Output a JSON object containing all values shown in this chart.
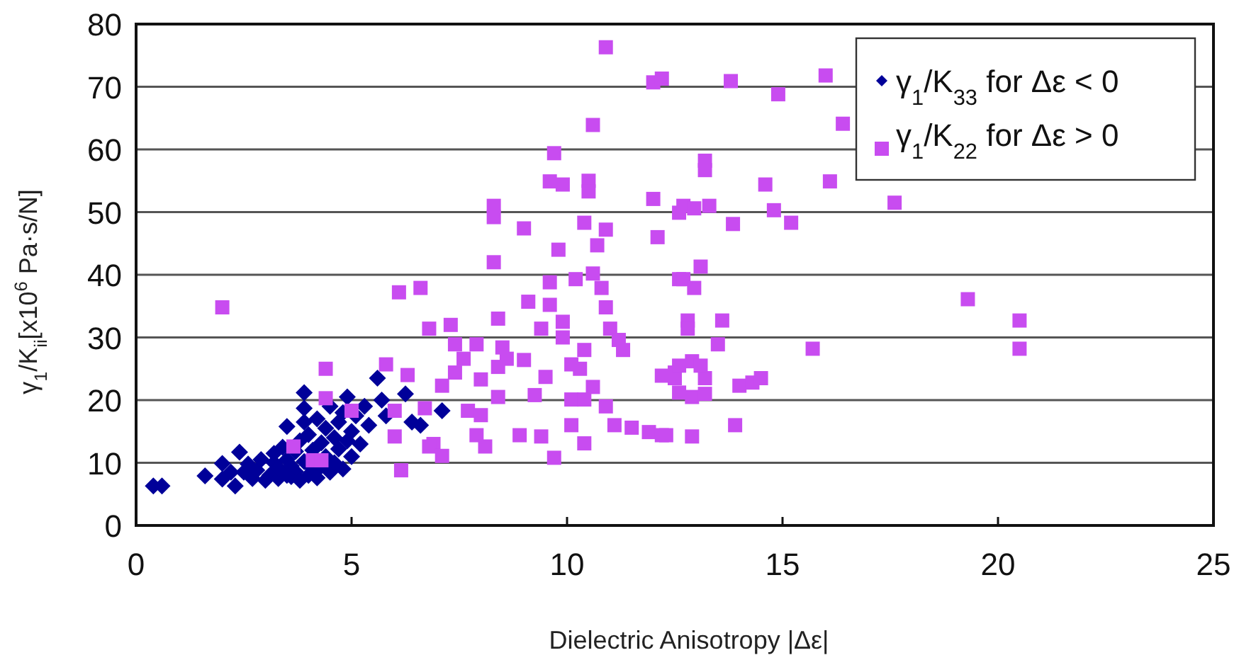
{
  "chart_data": {
    "type": "scatter",
    "xlabel": "Dielectric Anisotropy  |Δε|",
    "ylabel": "γ$_{1}$/K$_{ii}$[x10$^{6}$ Pa·s/N]",
    "xlim": [
      0,
      25
    ],
    "xticks": [
      0,
      5,
      10,
      15,
      20,
      25
    ],
    "ylim": [
      0,
      80
    ],
    "yticks": [
      0,
      10,
      20,
      30,
      40,
      50,
      60,
      70,
      80
    ],
    "grid": "y",
    "legend": "top right",
    "series": [
      {
        "name": "γ$_{1}$/K$_{33}$ for Δε < 0",
        "color": "#000099",
        "marker": "diamond",
        "x": [
          0.4,
          0.6,
          1.6,
          2.0,
          2.0,
          2.3,
          2.4,
          2.5,
          2.6,
          2.7,
          2.8,
          2.9,
          3.0,
          3.1,
          3.2,
          3.2,
          3.3,
          3.3,
          3.4,
          3.5,
          3.5,
          3.6,
          3.6,
          3.7,
          3.7,
          3.8,
          3.8,
          3.9,
          3.9,
          3.9,
          3.9,
          4.0,
          4.0,
          4.1,
          4.1,
          4.2,
          4.2,
          4.3,
          4.4,
          4.4,
          4.5,
          4.5,
          4.6,
          4.6,
          4.7,
          4.7,
          4.8,
          4.8,
          4.9,
          4.9,
          5.0,
          5.0,
          5.1,
          5.2,
          5.3,
          5.4,
          5.6,
          5.7,
          5.8,
          6.25,
          6.4,
          6.6,
          7.1,
          3.5,
          4.3,
          2.2
        ],
        "values": [
          6.3,
          6.3,
          7.9,
          9.9,
          7.4,
          6.3,
          11.7,
          8.5,
          9.8,
          7.5,
          8.8,
          10.5,
          7.2,
          8.0,
          10.0,
          11.5,
          7.5,
          9.2,
          12.5,
          15.8,
          10.5,
          7.8,
          9.5,
          8.6,
          11.8,
          13.5,
          7.2,
          21.2,
          18.7,
          16.5,
          10.2,
          8.0,
          14.5,
          12.0,
          9.0,
          17.0,
          7.6,
          13.2,
          15.5,
          11.0,
          8.5,
          19.0,
          14.0,
          10.0,
          16.5,
          12.2,
          18.0,
          9.0,
          13.5,
          20.5,
          15.0,
          11.0,
          17.5,
          13.0,
          19.0,
          16.0,
          23.5,
          20.0,
          17.5,
          21,
          16.5,
          16,
          18.3,
          8.0,
          9.5,
          8.5
        ]
      },
      {
        "name": "γ$_{1}$/K$_{22}$ for Δε > 0",
        "color": "#c84cf0",
        "marker": "square",
        "x": [
          2.0,
          4.4,
          4.4,
          3.65,
          4.1,
          4.3,
          6.15,
          5.8,
          6.3,
          6.0,
          6.8,
          7.3,
          7.4,
          7.4,
          7.1,
          6.9,
          5.0,
          10.6,
          9.7,
          9.6,
          9.9,
          10.5,
          10.5,
          8.3,
          8.3,
          9.0,
          10.4,
          10.9,
          10.7,
          9.8,
          12.0,
          12.1,
          8.3,
          9.6,
          10.2,
          10.6,
          10.8,
          10.9,
          9.1,
          9.6,
          6.1,
          6.6,
          8.4,
          9.4,
          9.9,
          9.9,
          11.0,
          11.2,
          11.3,
          7.9,
          7.6,
          8.5,
          8.6,
          9.0,
          10.1,
          10.4,
          8.0,
          8.4,
          9.5,
          10.6,
          10.3,
          9.25,
          8.4,
          7.7,
          8.0,
          7.9,
          8.1,
          6.7,
          6.0,
          6.8,
          7.1,
          10.1,
          10.4,
          10.1,
          10.4,
          10.9,
          11.1,
          11.5,
          11.9,
          12.2,
          12.2,
          12.5,
          12.6,
          12.6,
          13.8,
          14.9,
          16.0,
          16.4,
          13.2,
          13.2,
          14.6,
          16.1,
          12.7,
          12.95,
          13.3,
          13.85,
          14.8,
          15.2,
          17.6,
          12.7,
          13.1,
          12.95,
          12.8,
          12.8,
          13.6,
          13.5,
          15.7,
          19.3,
          20.5,
          20.5,
          12.5,
          13.2,
          12.9,
          12.9,
          12.6,
          13.1,
          12.6,
          13.2,
          12.3,
          12.9,
          13.9,
          14.0,
          14.3,
          14.5,
          10.9,
          12.0,
          12.2,
          8.9,
          9.4,
          9.7
        ],
        "values": [
          34.8,
          25,
          20.3,
          12.6,
          10.4,
          10.4,
          8.8,
          25.7,
          24,
          18.3,
          31.4,
          32,
          28.9,
          24.4,
          22.3,
          13,
          18.3,
          63.9,
          59.4,
          54.9,
          54.4,
          55,
          53.3,
          51,
          49.2,
          47.4,
          48.3,
          47.2,
          44.7,
          44,
          52.1,
          46,
          42,
          38.8,
          39.3,
          40.2,
          37.9,
          34.8,
          35.7,
          35.2,
          37.2,
          37.9,
          33,
          31.4,
          32.5,
          30,
          31.4,
          29.6,
          28,
          28.9,
          26.6,
          28.4,
          26.6,
          26.4,
          25.7,
          28,
          23.3,
          25.3,
          23.7,
          22.1,
          25,
          20.8,
          20.5,
          18.3,
          17.6,
          14.4,
          12.6,
          18.7,
          14.2,
          12.6,
          11.1,
          16,
          13.1,
          20.1,
          20.1,
          19,
          16,
          15.6,
          14.9,
          14.4,
          23.9,
          24.4,
          39.3,
          49.9,
          70.9,
          68.8,
          71.8,
          64.1,
          58.2,
          56.7,
          54.4,
          54.9,
          51,
          50.6,
          51,
          48.1,
          50.3,
          48.3,
          51.5,
          39.3,
          41.3,
          37.9,
          32.7,
          31.4,
          32.7,
          28.9,
          28.2,
          36.1,
          32.7,
          28.2,
          23.5,
          23.5,
          26.2,
          20.5,
          25.5,
          25.5,
          21.2,
          21,
          14.4,
          14.2,
          16,
          22.3,
          22.8,
          23.5,
          76.3,
          70.7,
          71.3,
          14.4,
          14.2,
          10.8
        ]
      }
    ]
  }
}
